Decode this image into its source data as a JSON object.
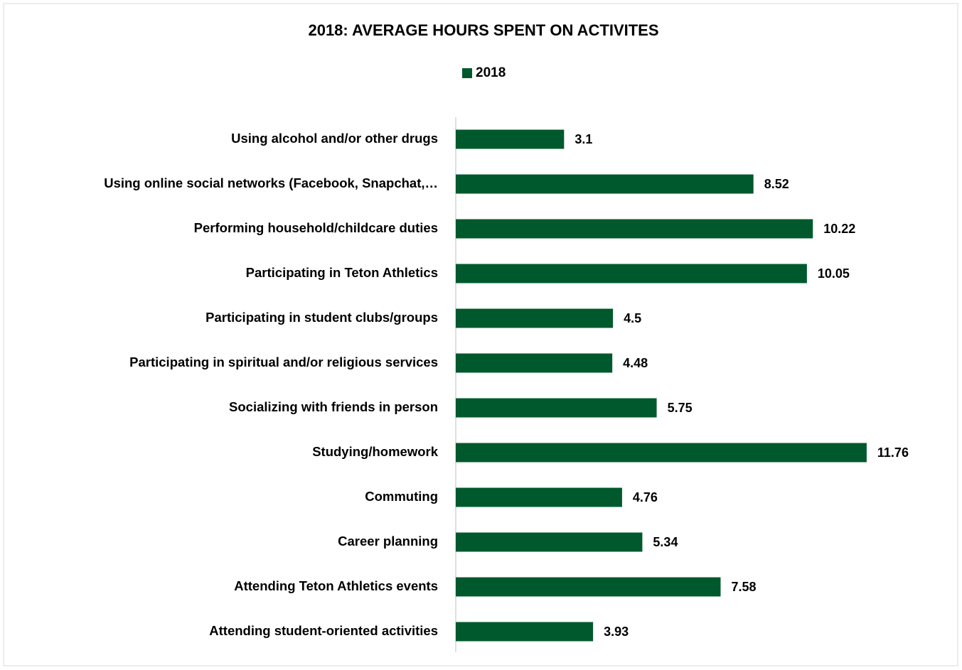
{
  "chart_data": {
    "type": "bar",
    "orientation": "horizontal",
    "title": "2018:  AVERAGE HOURS SPENT ON ACTIVITES",
    "categories": [
      "Using alcohol and/or other drugs",
      "Using online social networks (Facebook, Snapchat,…",
      "Performing household/childcare duties",
      "Participating in Teton Athletics",
      "Participating in student clubs/groups",
      "Participating in spiritual and/or religious services",
      "Socializing with friends in person",
      "Studying/homework",
      "Commuting",
      "Career planning",
      "Attending Teton Athletics events",
      "Attending student-oriented activities"
    ],
    "series": [
      {
        "name": "2018",
        "color": "#00592c",
        "values": [
          3.1,
          8.52,
          10.22,
          10.05,
          4.5,
          4.48,
          5.75,
          11.76,
          4.76,
          5.34,
          7.58,
          3.93
        ]
      }
    ],
    "xlim": [
      0,
      14
    ],
    "legend": "top"
  }
}
